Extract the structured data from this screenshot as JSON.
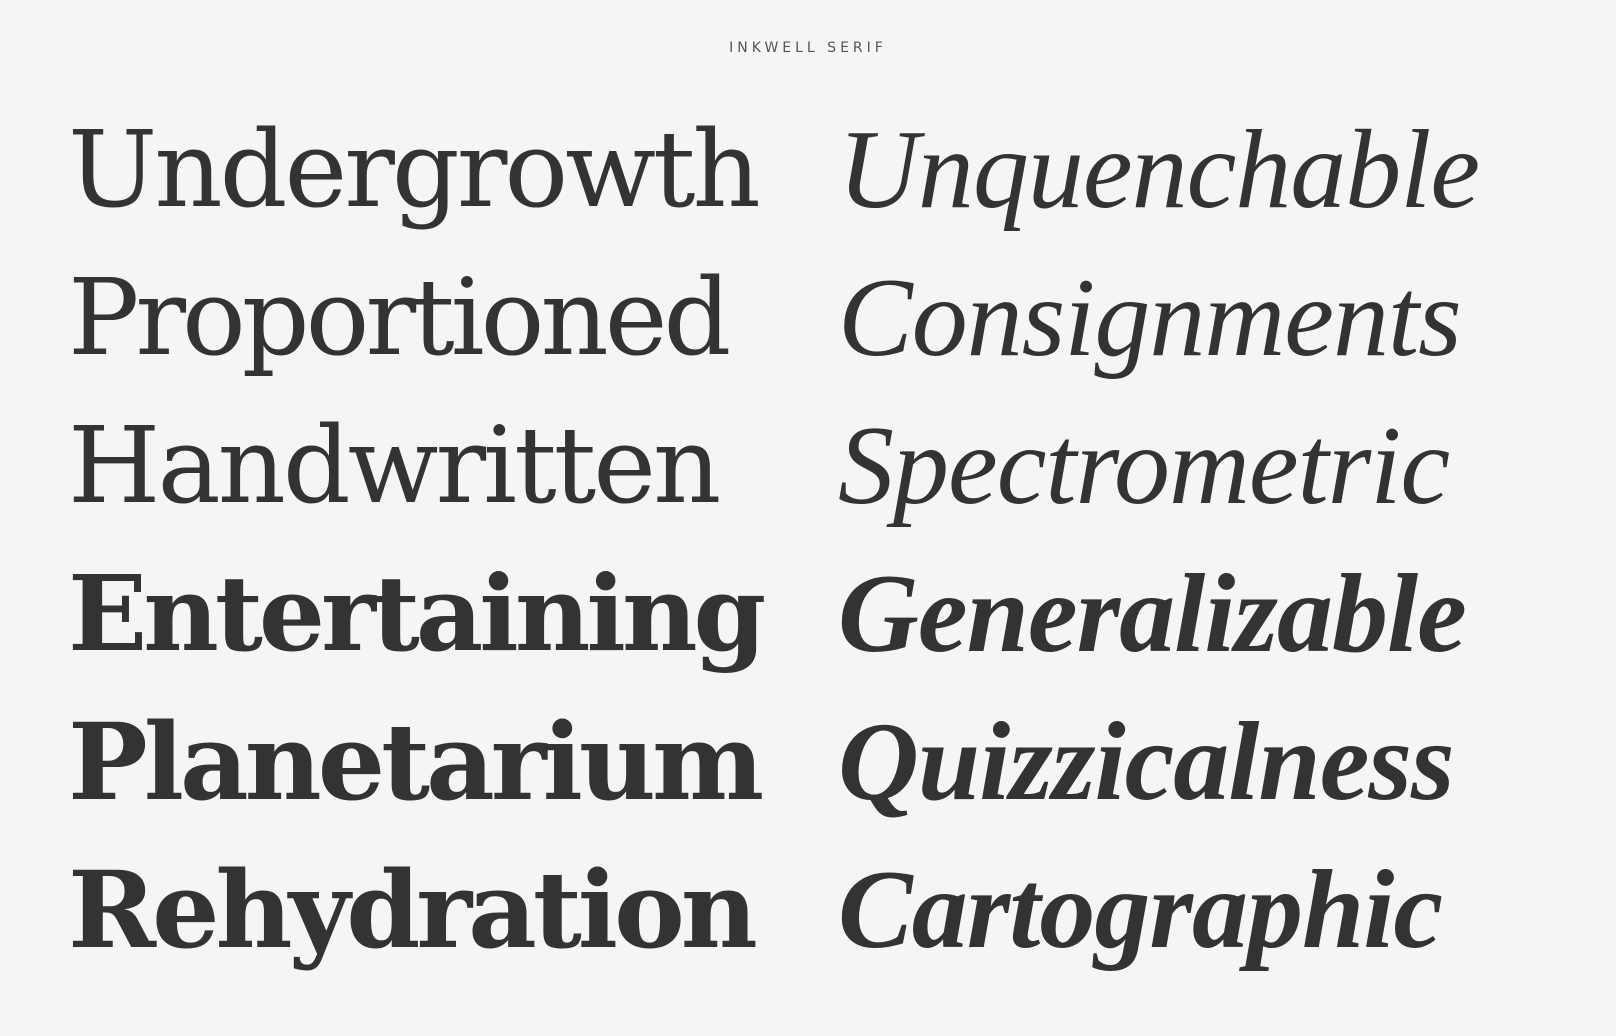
{
  "header": {
    "title": "INKWELL SERIF"
  },
  "specimen": {
    "rows": [
      {
        "roman": "Undergrowth",
        "italic": "Unquenchable"
      },
      {
        "roman": "Proportioned",
        "italic": "Consignments"
      },
      {
        "roman": "Handwritten",
        "italic": "Spectrometric"
      },
      {
        "roman": "Entertaining",
        "italic": "Generalizable"
      },
      {
        "roman": "Planetarium",
        "italic": "Quizzicalness"
      },
      {
        "roman": "Rehydration",
        "italic": "Cartographic"
      }
    ]
  }
}
